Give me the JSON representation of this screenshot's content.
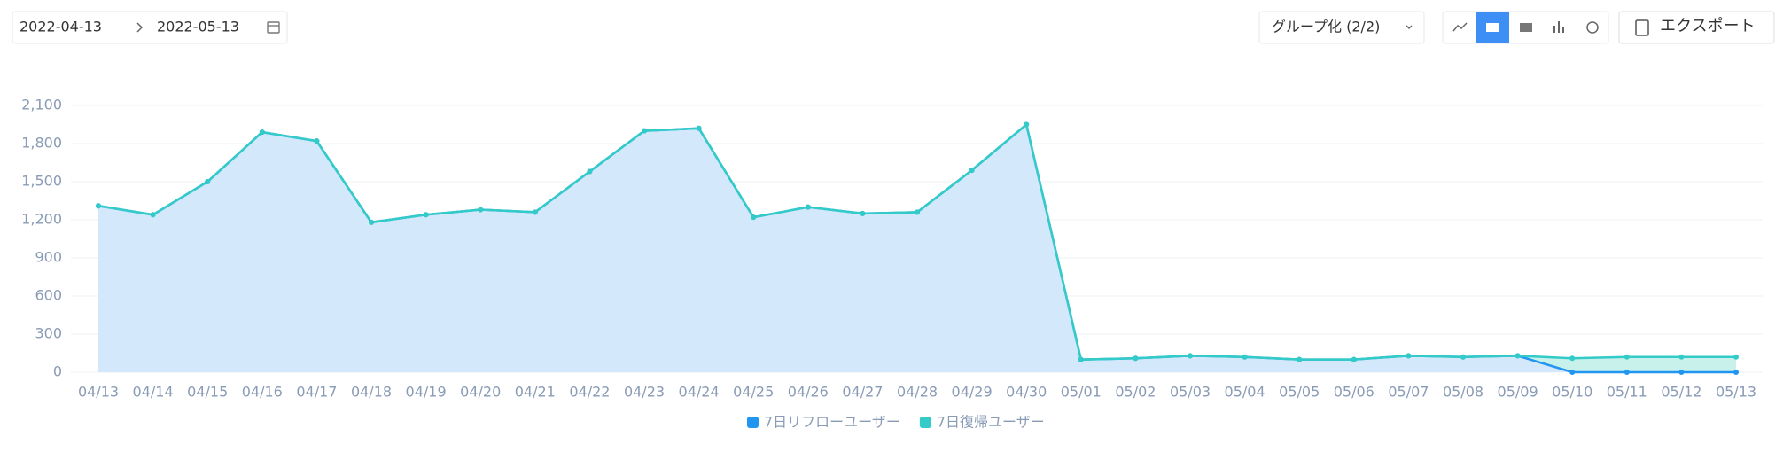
{
  "toolbar": {
    "start_date": "2022-04-13",
    "end_date": "2022-05-13",
    "group_button": "グループ化 (2/2)",
    "export_button": "エクスポート"
  },
  "chart_data": {
    "type": "stacked-area",
    "categories": [
      "04/13",
      "04/14",
      "04/15",
      "04/16",
      "04/17",
      "04/18",
      "04/19",
      "04/20",
      "04/21",
      "04/22",
      "04/23",
      "04/24",
      "04/25",
      "04/26",
      "04/27",
      "04/28",
      "04/29",
      "04/30",
      "05/01",
      "05/02",
      "05/03",
      "05/04",
      "05/05",
      "05/06",
      "05/07",
      "05/08",
      "05/09",
      "05/10",
      "05/11",
      "05/12",
      "05/13"
    ],
    "series": [
      {
        "name": "7日リフローユーザー",
        "color": "#2196f0",
        "values": [
          1310,
          1240,
          1500,
          1890,
          1820,
          1180,
          1240,
          1280,
          1260,
          1580,
          1900,
          1920,
          1220,
          1300,
          1250,
          1260,
          1590,
          1950,
          100,
          110,
          130,
          120,
          100,
          100,
          130,
          120,
          130,
          0,
          0,
          0,
          0
        ]
      },
      {
        "name": "7日復帰ユーザー",
        "color": "#33cbc8",
        "values": [
          0,
          0,
          0,
          0,
          0,
          0,
          0,
          0,
          0,
          0,
          0,
          0,
          0,
          0,
          0,
          0,
          0,
          0,
          0,
          0,
          0,
          0,
          0,
          0,
          0,
          0,
          0,
          110,
          120,
          120,
          120
        ]
      }
    ],
    "ylim": [
      0,
      2100
    ],
    "yticks": [
      0,
      300,
      600,
      900,
      {
        "value": 1200,
        "label": "1,200"
      },
      {
        "value": 1500,
        "label": "1,500"
      },
      {
        "value": 1800,
        "label": "1,800"
      },
      {
        "value": 2100,
        "label": "2,100"
      }
    ],
    "grid": true
  }
}
